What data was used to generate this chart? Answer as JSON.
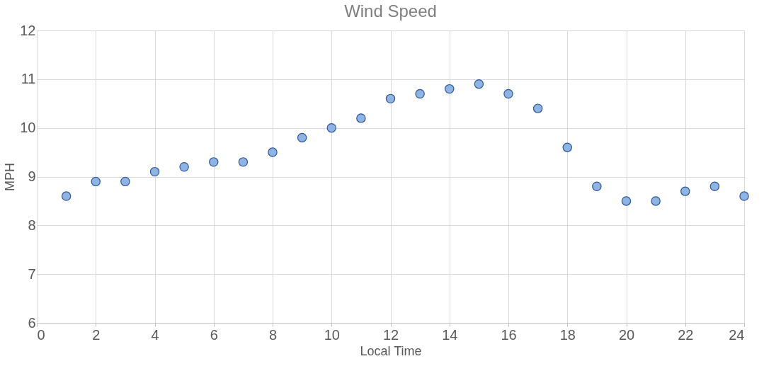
{
  "chart_data": {
    "type": "scatter",
    "title": "Wind Speed",
    "xlabel": "Local Time",
    "ylabel": "MPH",
    "x": [
      1,
      2,
      3,
      4,
      5,
      6,
      7,
      8,
      9,
      10,
      11,
      12,
      13,
      14,
      15,
      16,
      17,
      18,
      19,
      20,
      21,
      22,
      23,
      24
    ],
    "series": [
      {
        "color": "#8db4e2",
        "values": [
          8.6,
          8.9,
          8.9,
          9.1,
          9.2,
          9.3,
          9.3,
          9.5,
          9.8,
          10.0,
          10.2,
          10.6,
          10.7,
          10.8,
          10.9,
          10.7,
          10.4,
          9.6,
          8.8,
          8.5,
          8.5,
          8.7,
          8.8,
          8.6
        ]
      }
    ],
    "xlim": [
      0,
      24
    ],
    "xticks": [
      0,
      2,
      4,
      6,
      8,
      10,
      12,
      14,
      16,
      18,
      20,
      22,
      24
    ],
    "ylim": [
      6,
      12
    ],
    "yticks": [
      6,
      7,
      8,
      9,
      10,
      11,
      12
    ],
    "grid": true,
    "marker": "circle"
  }
}
